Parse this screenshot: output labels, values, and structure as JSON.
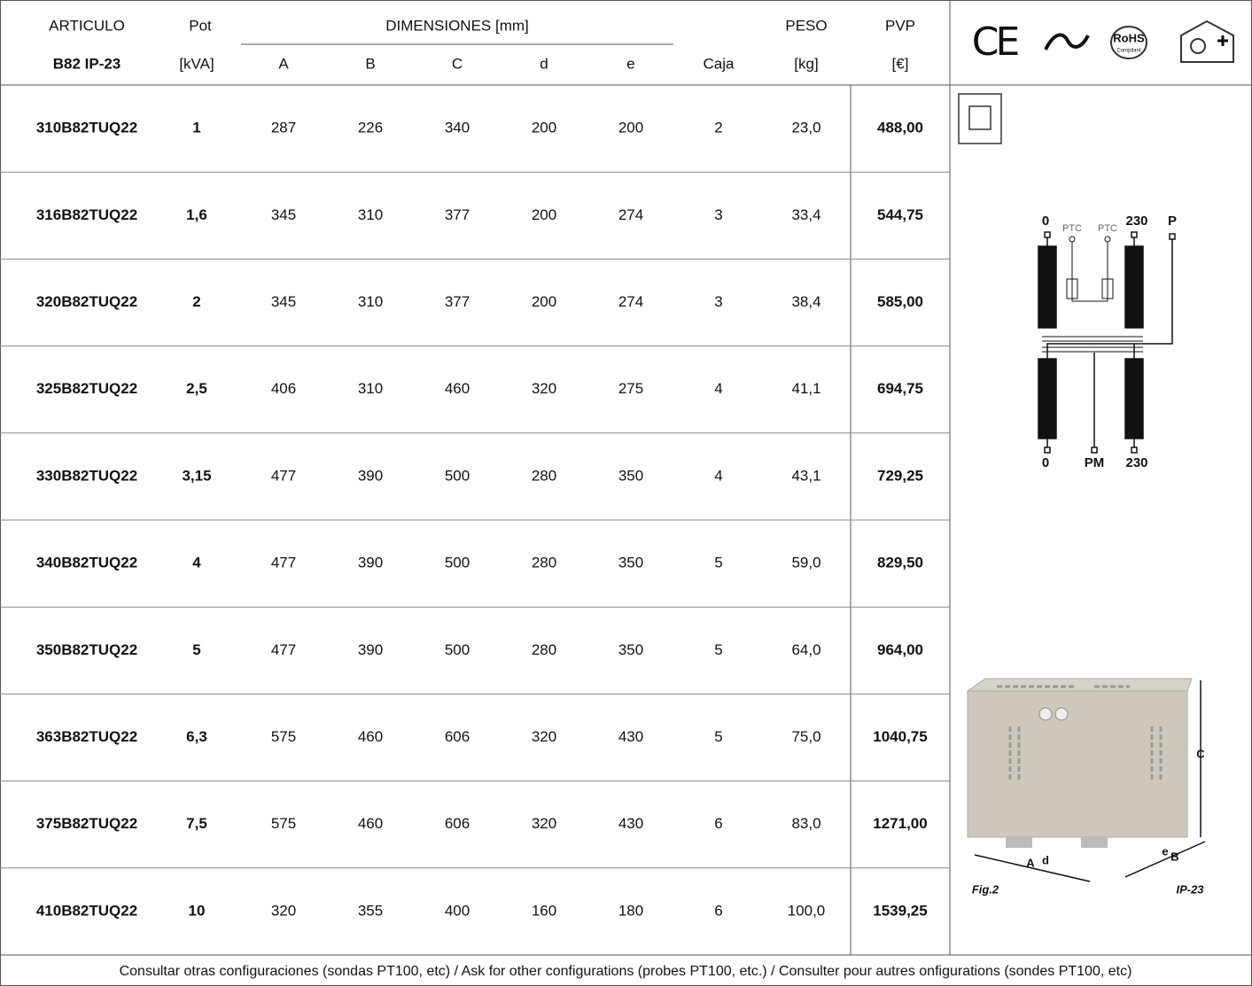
{
  "header": {
    "row1": [
      "ARTICULO",
      "Pot",
      "DIMENSIONES [mm]",
      "PESO",
      "PVP"
    ],
    "row2": [
      "B82 IP-23",
      "[kVA]",
      "A",
      "B",
      "C",
      "d",
      "e",
      "Caja",
      "[kg]",
      "[€]"
    ]
  },
  "icons": {
    "ce": "CE",
    "rohs": "RoHS",
    "rohs_sub": "Compliant"
  },
  "table": {
    "rows": [
      [
        "310B82TUQ22",
        "1",
        "287",
        "226",
        "340",
        "200",
        "200",
        "2",
        "23,0",
        "488,00"
      ],
      [
        "316B82TUQ22",
        "1,6",
        "345",
        "310",
        "377",
        "200",
        "274",
        "3",
        "33,4",
        "544,75"
      ],
      [
        "320B82TUQ22",
        "2",
        "345",
        "310",
        "377",
        "200",
        "274",
        "3",
        "38,4",
        "585,00"
      ],
      [
        "325B82TUQ22",
        "2,5",
        "406",
        "310",
        "460",
        "320",
        "275",
        "4",
        "41,1",
        "694,75"
      ],
      [
        "330B82TUQ22",
        "3,15",
        "477",
        "390",
        "500",
        "280",
        "350",
        "4",
        "43,1",
        "729,25"
      ],
      [
        "340B82TUQ22",
        "4",
        "477",
        "390",
        "500",
        "280",
        "350",
        "5",
        "59,0",
        "829,50"
      ],
      [
        "350B82TUQ22",
        "5",
        "477",
        "390",
        "500",
        "280",
        "350",
        "5",
        "64,0",
        "964,00"
      ],
      [
        "363B82TUQ22",
        "6,3",
        "575",
        "460",
        "606",
        "320",
        "430",
        "5",
        "75,0",
        "1040,75"
      ],
      [
        "375B82TUQ22",
        "7,5",
        "575",
        "460",
        "606",
        "320",
        "430",
        "6",
        "83,0",
        "1271,00"
      ],
      [
        "410B82TUQ22",
        "10",
        "320",
        "355",
        "400",
        "160",
        "180",
        "6",
        "100,0",
        "1539,25"
      ]
    ]
  },
  "diagram": {
    "labels": [
      "0",
      "PTC",
      "PTC",
      "230",
      "P",
      "0",
      "PM",
      "230"
    ]
  },
  "figure": {
    "labels": [
      "C",
      "A",
      "d",
      "e",
      "B"
    ],
    "caption": "Fig.2",
    "class": "IP-23"
  },
  "footer": "Consultar otras configuraciones (sondas PT100, etc) / Ask for other  configurations  (probes PT100, etc.) / Consulter pour autres onfigurations (sondes PT100, etc)"
}
